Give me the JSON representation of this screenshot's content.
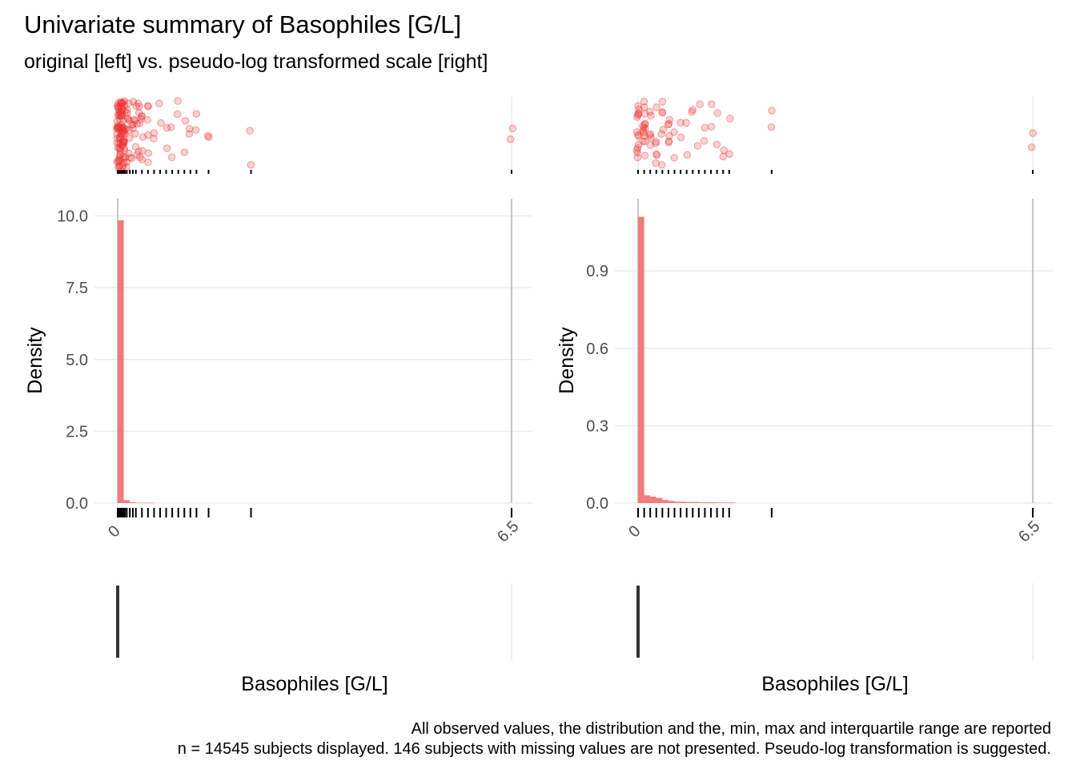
{
  "title": "Univariate summary of Basophiles [G/L]",
  "subtitle": "original [left] vs. pseudo-log transformed scale [right]",
  "caption": [
    "All observed values, the distribution and the, min, max and interquartile range are reported",
    "n = 14545 subjects displayed. 146 subjects with missing values are not presented. Pseudo-log transformation is suggested."
  ],
  "colors": {
    "bar": "#f07b7b",
    "point": "#ee3030",
    "grid": "#ebebeb",
    "axis_line": "#b3b3b3",
    "box": "#333333",
    "text": "#000000",
    "tick_text": "#4d4d4d"
  },
  "chart_data": [
    {
      "type": "bar",
      "panel": "original scale",
      "xlabel": "Basophiles [G/L]",
      "ylabel": "Density",
      "x_ticks": [
        0,
        6.5
      ],
      "x_tick_labels": [
        "0",
        "6.5"
      ],
      "xlim": [
        0,
        6.5
      ],
      "y_ticks": [
        0,
        2.5,
        5.0,
        7.5,
        10.0
      ],
      "y_tick_labels": [
        "0.0",
        "2.5",
        "5.0",
        "7.5",
        "10.0"
      ],
      "ylim": [
        0,
        10.6
      ],
      "histogram": [
        {
          "x0": 0.0,
          "x1": 0.1,
          "density": 9.85
        },
        {
          "x0": 0.1,
          "x1": 0.2,
          "density": 0.1
        },
        {
          "x0": 0.2,
          "x1": 0.3,
          "density": 0.03
        },
        {
          "x0": 0.3,
          "x1": 0.4,
          "density": 0.01
        },
        {
          "x0": 0.4,
          "x1": 0.5,
          "density": 0.01
        },
        {
          "x0": 0.5,
          "x1": 0.6,
          "density": 0.01
        }
      ],
      "rug_values": [
        0,
        0.02,
        0.04,
        0.06,
        0.08,
        0.1,
        0.12,
        0.15,
        0.2,
        0.25,
        0.3,
        0.4,
        0.5,
        0.6,
        0.7,
        0.8,
        0.9,
        1.0,
        1.1,
        1.2,
        1.3,
        1.5,
        2.2,
        6.5
      ],
      "boxplot": {
        "min": 0,
        "q1": 0.01,
        "median": 0.02,
        "q3": 0.04,
        "max": 6.5
      },
      "points": [
        0,
        0.02,
        0.04,
        0.06,
        0.08,
        0.1,
        0.12,
        0.15,
        0.2,
        0.25,
        0.3,
        0.35,
        0.4,
        0.5,
        0.6,
        0.7,
        0.8,
        0.9,
        1.0,
        1.1,
        1.2,
        1.3,
        1.5,
        2.2,
        6.5
      ]
    },
    {
      "type": "bar",
      "panel": "pseudo-log transformed scale",
      "xlabel": "Basophiles [G/L]",
      "ylabel": "Density",
      "x_ticks": [
        0,
        6.5
      ],
      "x_tick_labels": [
        "0",
        "6.5"
      ],
      "xlim": [
        0,
        6.5
      ],
      "y_ticks": [
        0,
        0.3,
        0.6,
        0.9
      ],
      "y_tick_labels": [
        "0.0",
        "0.3",
        "0.6",
        "0.9"
      ],
      "ylim": [
        0,
        1.18
      ],
      "histogram": [
        {
          "x0": 0.0,
          "x1": 0.1,
          "density": 1.11
        },
        {
          "x0": 0.1,
          "x1": 0.2,
          "density": 0.03
        },
        {
          "x0": 0.2,
          "x1": 0.3,
          "density": 0.025
        },
        {
          "x0": 0.3,
          "x1": 0.4,
          "density": 0.02
        },
        {
          "x0": 0.4,
          "x1": 0.5,
          "density": 0.012
        },
        {
          "x0": 0.5,
          "x1": 0.6,
          "density": 0.008
        },
        {
          "x0": 0.6,
          "x1": 0.8,
          "density": 0.005
        },
        {
          "x0": 0.8,
          "x1": 1.0,
          "density": 0.004
        },
        {
          "x0": 1.0,
          "x1": 1.3,
          "density": 0.003
        },
        {
          "x0": 1.3,
          "x1": 1.6,
          "density": 0.002
        }
      ],
      "rug_values": [
        0,
        0.1,
        0.2,
        0.3,
        0.4,
        0.5,
        0.6,
        0.7,
        0.8,
        0.9,
        1.0,
        1.1,
        1.2,
        1.3,
        1.4,
        1.5,
        2.2,
        6.5
      ],
      "boxplot": {
        "min": 0,
        "q1": 0.01,
        "median": 0.02,
        "q3": 0.04,
        "max": 6.5
      },
      "points": [
        0,
        0.1,
        0.2,
        0.3,
        0.4,
        0.5,
        0.6,
        0.7,
        0.8,
        0.9,
        1.0,
        1.1,
        1.2,
        1.3,
        1.4,
        1.5,
        2.2,
        6.5
      ]
    }
  ]
}
